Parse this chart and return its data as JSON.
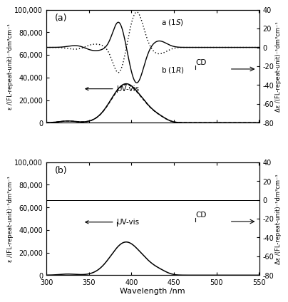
{
  "title_a": "(a)",
  "title_b": "(b)",
  "xlabel": "Wavelength /nm",
  "ylabel_left": "ε /(FL-repeat-unit)⁻¹dm³cm⁻¹",
  "ylabel_right": "Δε /(FL-repeat-unit)⁻¹dm³cm⁻¹",
  "xlim": [
    300,
    550
  ],
  "ylim_left": [
    0,
    100000
  ],
  "ylim_right": [
    -80,
    40
  ],
  "yticks_left": [
    0,
    20000,
    40000,
    60000,
    80000,
    100000
  ],
  "ytick_labels_left": [
    "0",
    "20,000",
    "40,000",
    "60,000",
    "80,000",
    "100,000"
  ],
  "yticks_right": [
    -80,
    -60,
    -40,
    -20,
    0,
    20,
    40
  ],
  "xticks": [
    300,
    350,
    400,
    450,
    500,
    550
  ],
  "background_color": "#ffffff"
}
